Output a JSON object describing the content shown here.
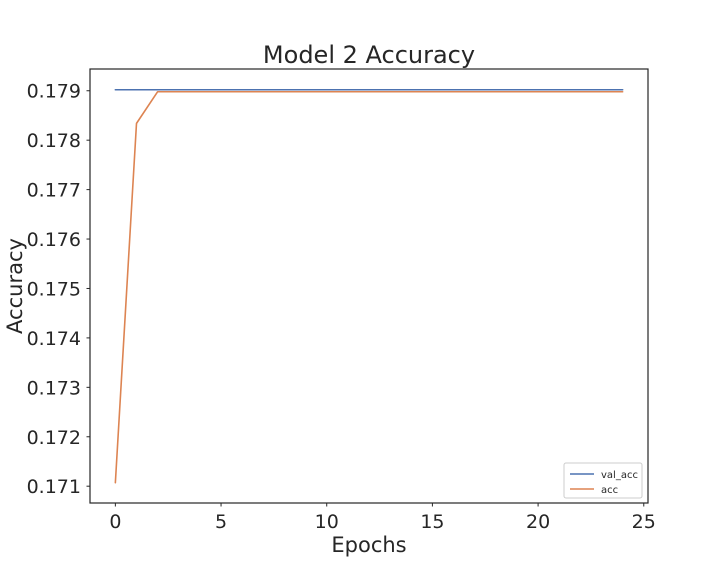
{
  "chart_data": {
    "type": "line",
    "title": "Model 2 Accuracy",
    "xlabel": "Epochs",
    "ylabel": "Accuracy",
    "xlim": [
      -1.2,
      25.2
    ],
    "ylim": [
      0.17066,
      0.17944
    ],
    "x_ticks": [
      0,
      5,
      10,
      15,
      20,
      25
    ],
    "x_tick_labels": [
      "0",
      "5",
      "10",
      "15",
      "20",
      "25"
    ],
    "y_ticks": [
      0.171,
      0.172,
      0.173,
      0.174,
      0.175,
      0.176,
      0.177,
      0.178,
      0.179
    ],
    "y_tick_labels": [
      "0.171",
      "0.172",
      "0.173",
      "0.174",
      "0.175",
      "0.176",
      "0.177",
      "0.178",
      "0.179"
    ],
    "grid": false,
    "legend_position": "lower-right",
    "x": [
      0,
      1,
      2,
      3,
      4,
      5,
      6,
      7,
      8,
      9,
      10,
      11,
      12,
      13,
      14,
      15,
      16,
      17,
      18,
      19,
      20,
      21,
      22,
      23,
      24
    ],
    "series": [
      {
        "name": "val_acc",
        "color": "#4c72b0",
        "values": [
          0.17902,
          0.17902,
          0.17902,
          0.17902,
          0.17902,
          0.17902,
          0.17902,
          0.17902,
          0.17902,
          0.17902,
          0.17902,
          0.17902,
          0.17902,
          0.17902,
          0.17902,
          0.17902,
          0.17902,
          0.17902,
          0.17902,
          0.17902,
          0.17902,
          0.17902,
          0.17902,
          0.17902,
          0.17902
        ]
      },
      {
        "name": "acc",
        "color": "#dd8452",
        "values": [
          0.17107,
          0.17834,
          0.17898,
          0.17898,
          0.17898,
          0.17898,
          0.17898,
          0.17898,
          0.17898,
          0.17898,
          0.17898,
          0.17898,
          0.17898,
          0.17898,
          0.17898,
          0.17898,
          0.17898,
          0.17898,
          0.17898,
          0.17898,
          0.17898,
          0.17898,
          0.17898,
          0.17898,
          0.17898
        ]
      }
    ]
  }
}
